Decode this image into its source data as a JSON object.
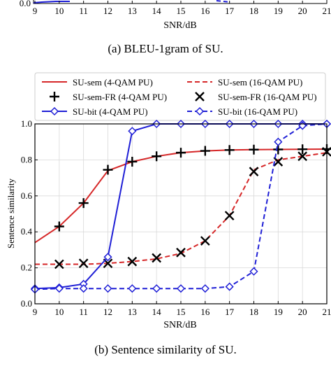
{
  "top_panel": {
    "caption": "(a) BLEU-1gram of SU.",
    "xlabel": "SNR/dB",
    "y_tick_visible": "0.0",
    "x_ticks": [
      "9",
      "10",
      "11",
      "12",
      "13",
      "14",
      "15",
      "16",
      "17",
      "18",
      "19",
      "20",
      "21"
    ]
  },
  "chart_data": {
    "type": "line",
    "caption": "(b) Sentence similarity of SU.",
    "xlabel": "SNR/dB",
    "ylabel": "Sentence similarity",
    "xlim": [
      9,
      21
    ],
    "ylim": [
      0,
      1.0
    ],
    "x_ticks": [
      9,
      10,
      11,
      12,
      13,
      14,
      15,
      16,
      17,
      18,
      19,
      20,
      21
    ],
    "x_tick_labels": [
      "9",
      "10",
      "11",
      "12",
      "13",
      "14",
      "15",
      "16",
      "17",
      "18",
      "19",
      "20",
      "21"
    ],
    "y_ticks": [
      0,
      0.2,
      0.4,
      0.6,
      0.8,
      1.0
    ],
    "y_tick_labels": [
      "0.0",
      "0.2",
      "0.4",
      "0.6",
      "0.8",
      "1.0"
    ],
    "grid": true,
    "legend_position": "top, above plot, two columns",
    "series": [
      {
        "name": "SU-sem (4-QAM PU)",
        "color": "#d62728",
        "dash": "solid",
        "marker": "none",
        "x": [
          9,
          10,
          11,
          12,
          13,
          14,
          15,
          16,
          17,
          18,
          19,
          20,
          21
        ],
        "values": [
          0.34,
          0.43,
          0.56,
          0.74,
          0.79,
          0.82,
          0.84,
          0.85,
          0.855,
          0.857,
          0.858,
          0.859,
          0.86
        ]
      },
      {
        "name": "SU-sem (16-QAM PU)",
        "color": "#d62728",
        "dash": "dashed",
        "marker": "none",
        "x": [
          9,
          10,
          11,
          12,
          13,
          14,
          15,
          16,
          17,
          18,
          19,
          20,
          21
        ],
        "values": [
          0.22,
          0.22,
          0.22,
          0.225,
          0.235,
          0.25,
          0.28,
          0.35,
          0.49,
          0.745,
          0.8,
          0.82,
          0.84
        ]
      },
      {
        "name": "SU-sem-FR (4-QAM PU)",
        "color": "#000000",
        "dash": "none",
        "marker": "plus",
        "x": [
          10,
          11,
          12,
          13,
          14,
          15,
          16,
          17,
          18,
          19,
          20,
          21
        ],
        "values": [
          0.43,
          0.56,
          0.745,
          0.79,
          0.82,
          0.84,
          0.85,
          0.855,
          0.857,
          0.858,
          0.859,
          0.86
        ]
      },
      {
        "name": "SU-sem-FR (16-QAM PU)",
        "color": "#000000",
        "dash": "none",
        "marker": "x",
        "x": [
          10,
          11,
          12,
          13,
          14,
          15,
          16,
          17,
          18,
          19,
          20,
          21
        ],
        "values": [
          0.22,
          0.225,
          0.225,
          0.235,
          0.255,
          0.285,
          0.35,
          0.49,
          0.735,
          0.79,
          0.82,
          0.845
        ]
      },
      {
        "name": "SU-bit (4-QAM PU)",
        "color": "#1f1fd6",
        "dash": "solid",
        "marker": "diamond",
        "x": [
          9,
          10,
          11,
          12,
          13,
          14,
          15,
          16,
          17,
          18,
          19,
          20,
          21
        ],
        "values": [
          0.085,
          0.09,
          0.11,
          0.26,
          0.96,
          1.0,
          1.0,
          1.0,
          1.0,
          1.0,
          1.0,
          1.0,
          1.0
        ]
      },
      {
        "name": "SU-bit (16-QAM PU)",
        "color": "#1f1fd6",
        "dash": "dashed",
        "marker": "diamond",
        "x": [
          9,
          10,
          11,
          12,
          13,
          14,
          15,
          16,
          17,
          18,
          19,
          20,
          21
        ],
        "values": [
          0.08,
          0.085,
          0.085,
          0.085,
          0.085,
          0.085,
          0.085,
          0.085,
          0.095,
          0.18,
          0.9,
          0.99,
          1.0
        ]
      }
    ]
  }
}
